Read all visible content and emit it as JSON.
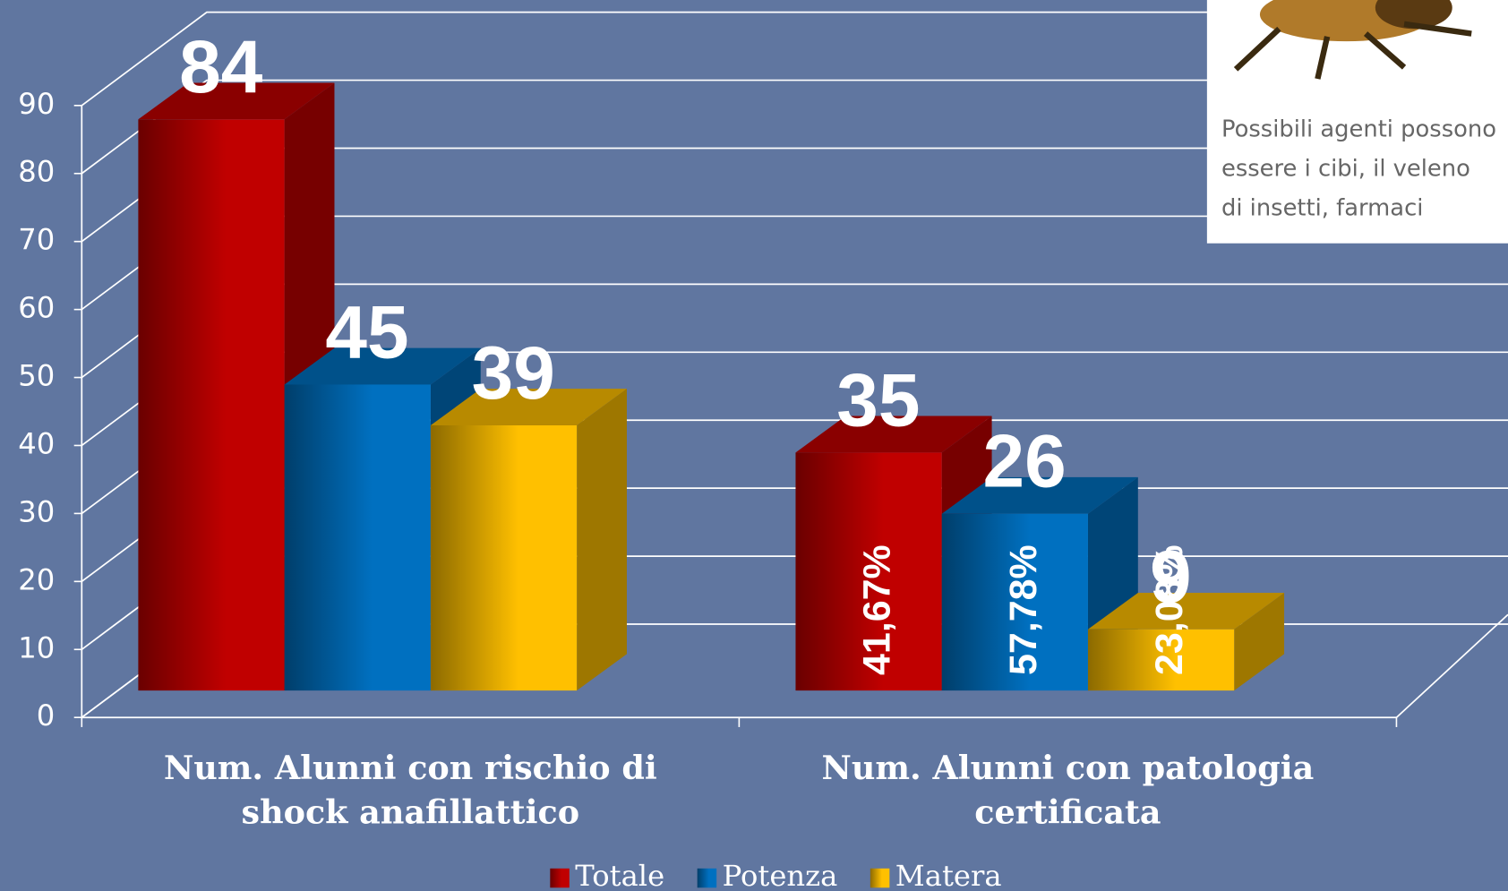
{
  "chart_data": {
    "type": "bar3d",
    "categories": [
      [
        "Num. Alunni con rischio di",
        "shock anafillattico"
      ],
      [
        "Num. Alunni con patologia",
        "certificata"
      ]
    ],
    "series": [
      {
        "name": "Totale",
        "color": "#c00000",
        "values": [
          84,
          35
        ],
        "percent_labels": [
          null,
          "41,67%"
        ]
      },
      {
        "name": "Potenza",
        "color": "#0070c0",
        "values": [
          45,
          26
        ],
        "percent_labels": [
          null,
          "57,78%"
        ]
      },
      {
        "name": "Matera",
        "color": "#ffc000",
        "values": [
          39,
          9
        ],
        "percent_labels": [
          null,
          "23,08%"
        ]
      }
    ],
    "ylim": [
      0,
      90
    ],
    "yticks": [
      0,
      10,
      20,
      30,
      40,
      50,
      60,
      70,
      80,
      90
    ],
    "grid": true,
    "legend": "bottom",
    "inset_text": [
      "Possibili agenti possono",
      "essere i cibi, il veleno",
      "di insetti, farmaci"
    ]
  }
}
